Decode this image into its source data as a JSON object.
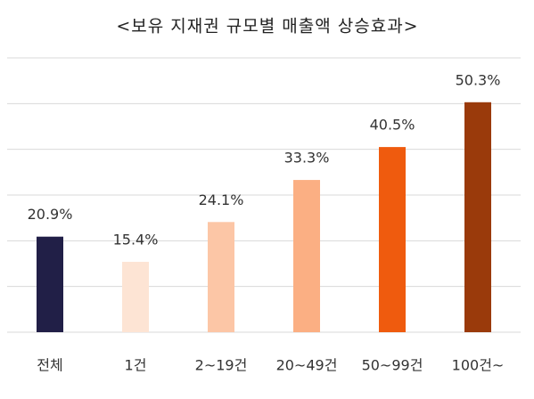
{
  "chart_data": {
    "type": "bar",
    "title": "<보유 지재권 규모별 매출액 상승효과>",
    "categories": [
      "전체",
      "1건",
      "2~19건",
      "20~49건",
      "50~99건",
      "100건~"
    ],
    "values": [
      20.9,
      15.4,
      24.1,
      33.3,
      40.5,
      50.3
    ],
    "value_labels": [
      "20.9%",
      "15.4%",
      "24.1%",
      "33.3%",
      "40.5%",
      "50.3%"
    ],
    "colors": [
      "#211f47",
      "#fde4d4",
      "#fcc6a6",
      "#fbaf83",
      "#ef5b0e",
      "#9a3a0b"
    ],
    "ylim": [
      0,
      60
    ],
    "yticks": [
      0,
      10,
      20,
      30,
      40,
      50,
      60
    ],
    "grid": true
  }
}
